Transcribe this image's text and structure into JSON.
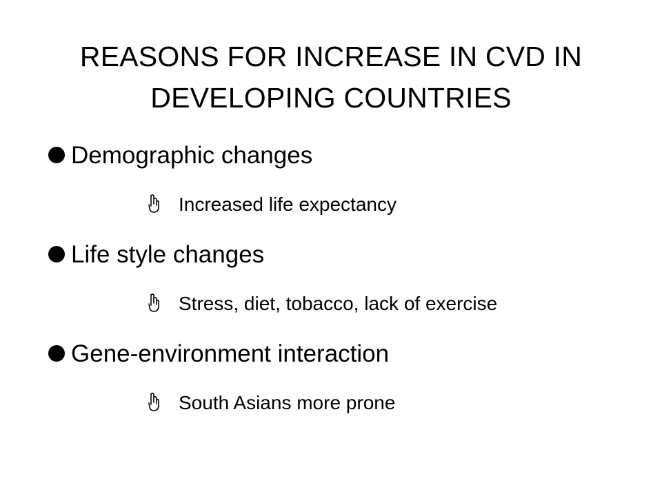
{
  "slide": {
    "title_line1": "REASONS FOR INCREASE IN CVD IN",
    "title_line2": "DEVELOPING COUNTRIES",
    "bullets": [
      {
        "label": "Demographic changes",
        "sub": "Increased life expectancy"
      },
      {
        "label": "Life style changes",
        "sub": "Stress, diet, tobacco, lack of exercise"
      },
      {
        "label": "Gene-environment interaction",
        "sub": "South Asians more prone"
      }
    ],
    "icons": {
      "bullet": "filled-circle-bullet-icon",
      "sub_bullet": "pointing-hand-icon"
    },
    "colors": {
      "background": "#ffffff",
      "text": "#000000"
    }
  }
}
